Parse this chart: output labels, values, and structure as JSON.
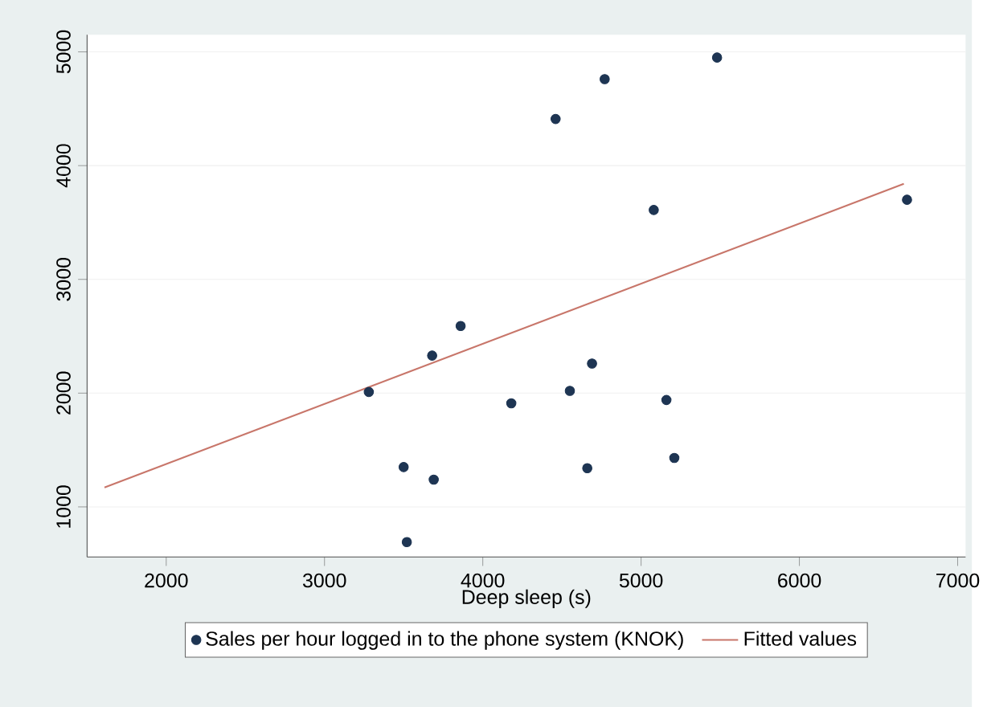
{
  "chart_data": {
    "type": "scatter",
    "xlabel": "Deep sleep (s)",
    "xlim": [
      1500,
      7050
    ],
    "ylim": [
      560,
      5150
    ],
    "xticks": [
      2000,
      3000,
      4000,
      5000,
      6000,
      7000
    ],
    "yticks": [
      1000,
      2000,
      3000,
      4000,
      5000
    ],
    "grid": "y",
    "legend": "bottom",
    "series": [
      {
        "name": "Sales per hour logged in to the phone system (KNOK)",
        "marker": "circle",
        "color": "#1e3553",
        "x": [
          4460,
          4770,
          5480,
          5080,
          6680,
          3280,
          3860,
          3680,
          4180,
          4550,
          4690,
          5160,
          3500,
          3690,
          4660,
          5210,
          3520
        ],
        "values": [
          4410,
          4760,
          4950,
          3610,
          3700,
          2010,
          2590,
          2330,
          1910,
          2020,
          2260,
          1940,
          1350,
          1240,
          1340,
          1430,
          690
        ]
      },
      {
        "name": "Fitted values",
        "type": "line",
        "marker": "none",
        "color": "#c8766a",
        "x": [
          1610,
          6660
        ],
        "values": [
          1170,
          3840
        ]
      }
    ]
  }
}
